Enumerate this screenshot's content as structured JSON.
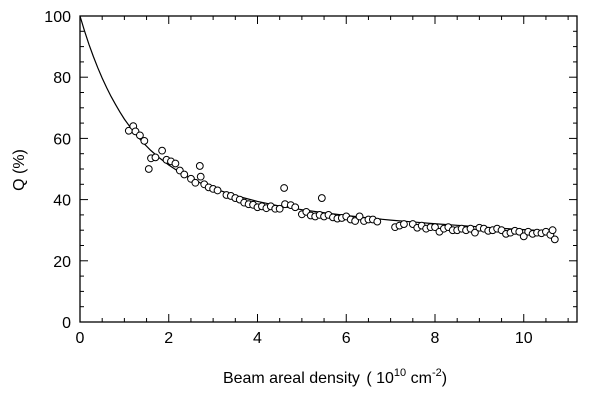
{
  "chart_data": {
    "type": "scatter",
    "title": "",
    "xlabel": {
      "prefix": "Beam areal density ",
      "paren_open": "( 10",
      "exp1": "10",
      "unit": " cm",
      "exp2": "-2",
      "paren_close": ")"
    },
    "ylabel": "Q (%)",
    "xlim": [
      0,
      11.2
    ],
    "ylim": [
      0,
      100
    ],
    "x_major_ticks": [
      0,
      2,
      4,
      6,
      8,
      10
    ],
    "x_minor_step": 0.5,
    "y_major_ticks": [
      0,
      20,
      40,
      60,
      80,
      100
    ],
    "y_minor_step": 5,
    "x_tick_labels": [
      "0",
      "2",
      "4",
      "6",
      "8",
      "10"
    ],
    "y_tick_labels": [
      "0",
      "20",
      "40",
      "60",
      "80",
      "100"
    ],
    "grid": false,
    "legend": "none",
    "fit_curve": {
      "style": "solid",
      "x": [
        0,
        0.1,
        0.2,
        0.3,
        0.4,
        0.5,
        0.6,
        0.7,
        0.8,
        0.9,
        1.0,
        1.2,
        1.4,
        1.6,
        1.8,
        2.0,
        2.25,
        2.5,
        2.75,
        3.0,
        3.5,
        4.0,
        4.5,
        5.0,
        5.5,
        6.0,
        6.5,
        7.0,
        7.5,
        8.0,
        8.5,
        9.0,
        9.5,
        10.0,
        10.5,
        10.7
      ],
      "y": [
        100,
        95.2,
        90.8,
        86.8,
        83.1,
        79.7,
        76.6,
        73.7,
        71.1,
        68.6,
        66.3,
        62.3,
        58.9,
        56.0,
        53.5,
        51.3,
        48.9,
        46.9,
        45.2,
        43.7,
        41.3,
        39.4,
        37.9,
        36.7,
        35.7,
        34.8,
        34.0,
        33.3,
        32.7,
        32.1,
        31.6,
        31.1,
        30.6,
        30.2,
        29.8,
        29.6
      ]
    },
    "series": [
      {
        "marker": "open-circle",
        "x": [
          1.1,
          1.2,
          1.25,
          1.35,
          1.45,
          1.55,
          1.6,
          1.7,
          1.85,
          1.95,
          2.05,
          2.15,
          2.25,
          2.35,
          2.5,
          2.6,
          2.7,
          2.72,
          2.8,
          2.9,
          3.0,
          3.1,
          3.3,
          3.4,
          3.5,
          3.6,
          3.7,
          3.8,
          3.9,
          4.0,
          4.1,
          4.2,
          4.3,
          4.4,
          4.5,
          4.6,
          4.62,
          4.75,
          4.85,
          5.0,
          5.1,
          5.2,
          5.3,
          5.4,
          5.45,
          5.5,
          5.6,
          5.7,
          5.8,
          5.9,
          6.0,
          6.1,
          6.2,
          6.3,
          6.4,
          6.5,
          6.6,
          6.7,
          7.1,
          7.2,
          7.3,
          7.5,
          7.6,
          7.7,
          7.8,
          7.9,
          8.0,
          8.1,
          8.2,
          8.3,
          8.4,
          8.5,
          8.6,
          8.7,
          8.8,
          8.9,
          9.0,
          9.1,
          9.2,
          9.3,
          9.4,
          9.5,
          9.6,
          9.7,
          9.8,
          9.9,
          10.0,
          10.1,
          10.2,
          10.3,
          10.4,
          10.5,
          10.6,
          10.65,
          10.7
        ],
        "y": [
          62.5,
          64,
          62.3,
          61,
          59.2,
          50,
          53.5,
          53.8,
          56,
          53,
          52.5,
          51.8,
          49.5,
          48.2,
          46.8,
          45.5,
          51,
          47.5,
          45,
          44,
          43.5,
          43,
          41.5,
          41.2,
          40.5,
          40,
          39,
          38.5,
          38.3,
          37.5,
          37.8,
          37.2,
          37.8,
          37,
          37,
          43.8,
          38.5,
          38.2,
          37.5,
          35.2,
          36,
          34.8,
          34.5,
          35,
          40.5,
          34.5,
          35,
          34.2,
          33.8,
          34,
          34.5,
          33.5,
          33,
          34.5,
          33,
          33.5,
          33.5,
          32.8,
          31,
          31.5,
          32,
          32,
          30.8,
          31.5,
          30.5,
          31,
          31,
          29.5,
          30.5,
          31,
          30,
          30,
          30.5,
          30,
          30.5,
          29.2,
          30.8,
          30.5,
          29.8,
          30,
          30.5,
          30,
          28.8,
          29.2,
          29.8,
          29.5,
          28,
          29.5,
          28.8,
          29.2,
          29,
          29.5,
          28.5,
          30,
          27
        ]
      }
    ]
  }
}
